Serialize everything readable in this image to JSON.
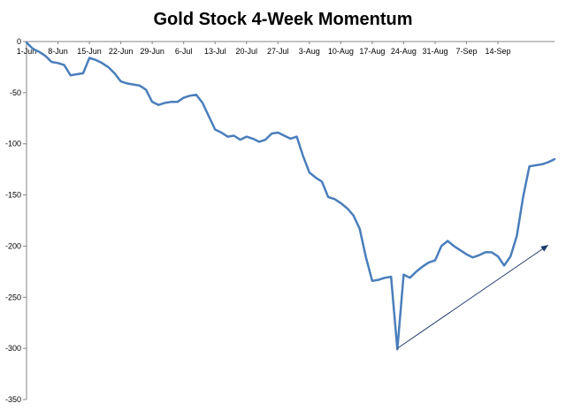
{
  "chart_data": {
    "type": "line",
    "title": "Gold Stock 4-Week Momentum",
    "xlabel": "",
    "ylabel": "",
    "ylim": [
      -350,
      0
    ],
    "y_ticks": [
      0,
      -50,
      -100,
      -150,
      -200,
      -250,
      -300,
      -350
    ],
    "x_tick_labels": [
      "1-Jun",
      "8-Jun",
      "15-Jun",
      "22-Jun",
      "29-Jun",
      "6-Jul",
      "13-Jul",
      "20-Jul",
      "27-Jul",
      "3-Aug",
      "10-Aug",
      "17-Aug",
      "24-Aug",
      "31-Aug",
      "7-Sep",
      "14-Sep"
    ],
    "grid": false,
    "legend": "none",
    "series": [
      {
        "color": "#4a7ebb",
        "values": [
          -1,
          -7,
          -10,
          -14,
          -20,
          -21,
          -23,
          -33,
          -32,
          -31,
          -16,
          -18,
          -21,
          -25,
          -31,
          -39,
          -41,
          -42,
          -43,
          -47,
          -59,
          -62,
          -60,
          -59,
          -59,
          -55,
          -53,
          -52,
          -60,
          -73,
          -86,
          -89,
          -93,
          -92,
          -96,
          -93,
          -95,
          -98,
          -96,
          -90,
          -89,
          -92,
          -95,
          -93,
          -112,
          -128,
          -133,
          -137,
          -152,
          -154,
          -158,
          -163,
          -170,
          -183,
          -211,
          -234,
          -233,
          -231,
          -230,
          -301,
          -228,
          -231,
          -225,
          -220,
          -216,
          -214,
          -200,
          -195,
          -200,
          -204,
          -208,
          -211,
          -209,
          -206,
          -206,
          -210,
          -219,
          -210,
          -190,
          -152,
          -122,
          -121,
          -120,
          -118,
          -115
        ]
      }
    ],
    "annotations": [
      {
        "type": "arrow",
        "from": {
          "x": 59,
          "y": -300
        },
        "to": {
          "x": 83,
          "y": -199
        },
        "color": "#1f3a6b"
      }
    ]
  }
}
